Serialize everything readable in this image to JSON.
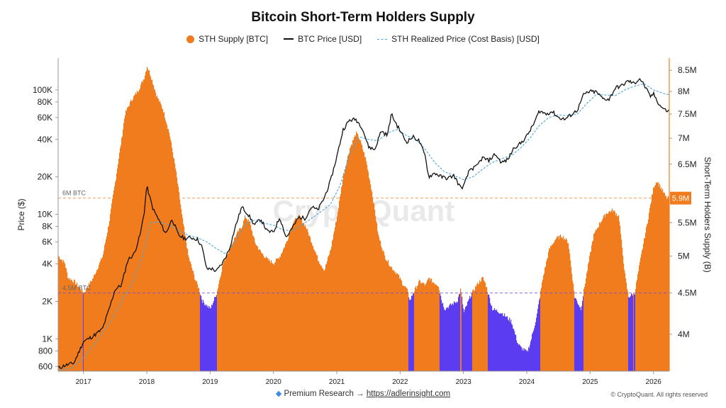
{
  "chart_data": {
    "type": "area",
    "title": "Bitcoin Short-Term Holders Supply",
    "legend": [
      {
        "name": "STH Supply [BTC]",
        "color": "#f07c1e"
      },
      {
        "name": "BTC Price [USD]",
        "color": "#111111"
      },
      {
        "name": "STH Realized Price (Cost Basis) [USD]",
        "color": "#4aa8d8"
      }
    ],
    "legend_placement": "top-center",
    "ylabel_left": "Price ($)",
    "ylabel_right": "Short-Term Holders Supply (B)",
    "y_left_scale": "log",
    "y_left_range": [
      550,
      180000
    ],
    "y_left_ticks": [
      {
        "v": 600,
        "label": "600"
      },
      {
        "v": 800,
        "label": "800"
      },
      {
        "v": 1000,
        "label": "1K"
      },
      {
        "v": 2000,
        "label": "2K"
      },
      {
        "v": 4000,
        "label": "4K"
      },
      {
        "v": 6000,
        "label": "6K"
      },
      {
        "v": 8000,
        "label": "8K"
      },
      {
        "v": 10000,
        "label": "10K"
      },
      {
        "v": 20000,
        "label": "20K"
      },
      {
        "v": 40000,
        "label": "40K"
      },
      {
        "v": 60000,
        "label": "60K"
      },
      {
        "v": 80000,
        "label": "80K"
      },
      {
        "v": 100000,
        "label": "100K"
      }
    ],
    "y_right_scale": "log",
    "y_right_range": [
      3.6,
      8.8
    ],
    "y_right_ticks": [
      {
        "v": 4.0,
        "label": "4M"
      },
      {
        "v": 4.5,
        "label": "4.5M"
      },
      {
        "v": 5.0,
        "label": "5M"
      },
      {
        "v": 5.5,
        "label": "5.5M"
      },
      {
        "v": 6.5,
        "label": "6.5M"
      },
      {
        "v": 7.0,
        "label": "7M"
      },
      {
        "v": 7.5,
        "label": "7.5M"
      },
      {
        "v": 8.0,
        "label": "8M"
      },
      {
        "v": 8.5,
        "label": "8.5M"
      }
    ],
    "x_range": [
      2016.6,
      2026.25
    ],
    "x_ticks": [
      {
        "v": 2017,
        "label": "2017"
      },
      {
        "v": 2018,
        "label": "2018"
      },
      {
        "v": 2019,
        "label": "2019"
      },
      {
        "v": 2020,
        "label": "2020"
      },
      {
        "v": 2021,
        "label": "2021"
      },
      {
        "v": 2022,
        "label": "2022"
      },
      {
        "v": 2023,
        "label": "2023"
      },
      {
        "v": 2024,
        "label": "2024"
      },
      {
        "v": 2025,
        "label": "2025"
      },
      {
        "v": 2026,
        "label": "2026"
      }
    ],
    "reference_lines": [
      {
        "value": 5.9,
        "label": "6M BTC",
        "color": "#f07c1e"
      },
      {
        "value": 4.5,
        "label": "4.5M BTC",
        "color": "#6a4cf0"
      }
    ],
    "last_value_label": "5.9M",
    "below_threshold_color": "#5b3cf0",
    "above_threshold_color": "#f07c1e",
    "sth_supply_millions": {
      "x": [
        2016.6,
        2016.7,
        2016.75,
        2016.85,
        2017.0,
        2017.15,
        2017.3,
        2017.4,
        2017.5,
        2017.6,
        2017.65,
        2017.75,
        2017.85,
        2017.95,
        2018.0,
        2018.05,
        2018.15,
        2018.25,
        2018.35,
        2018.45,
        2018.55,
        2018.65,
        2018.75,
        2018.82,
        2018.87,
        2018.93,
        2019.0,
        2019.1,
        2019.2,
        2019.3,
        2019.4,
        2019.5,
        2019.55,
        2019.62,
        2019.7,
        2019.8,
        2019.9,
        2020.0,
        2020.1,
        2020.2,
        2020.3,
        2020.4,
        2020.5,
        2020.6,
        2020.7,
        2020.8,
        2020.9,
        2021.0,
        2021.1,
        2021.2,
        2021.3,
        2021.35,
        2021.45,
        2021.55,
        2021.65,
        2021.75,
        2021.85,
        2021.95,
        2022.05,
        2022.1,
        2022.15,
        2022.2,
        2022.3,
        2022.4,
        2022.45,
        2022.5,
        2022.6,
        2022.65,
        2022.7,
        2022.8,
        2022.9,
        2022.95,
        2023.0,
        2023.1,
        2023.2,
        2023.3,
        2023.35,
        2023.45,
        2023.6,
        2023.75,
        2023.85,
        2023.9,
        2024.0,
        2024.05,
        2024.15,
        2024.25,
        2024.35,
        2024.45,
        2024.55,
        2024.65,
        2024.7,
        2024.75,
        2024.85,
        2024.95,
        2025.05,
        2025.15,
        2025.25,
        2025.35,
        2025.45,
        2025.5,
        2025.55,
        2025.6,
        2025.7,
        2025.8,
        2025.9,
        2025.95,
        2026.0,
        2026.05,
        2026.1,
        2026.2
      ],
      "y": [
        5.0,
        4.9,
        4.7,
        4.65,
        4.5,
        4.7,
        5.0,
        5.5,
        6.2,
        7.0,
        7.5,
        7.8,
        8.0,
        8.3,
        8.6,
        8.4,
        7.9,
        7.6,
        7.1,
        6.4,
        5.6,
        5.0,
        4.7,
        4.55,
        4.4,
        4.35,
        4.3,
        4.5,
        4.9,
        5.1,
        5.3,
        5.45,
        5.6,
        5.5,
        5.2,
        5.05,
        4.95,
        4.9,
        5.0,
        5.2,
        5.5,
        5.6,
        5.45,
        5.2,
        4.95,
        4.8,
        5.1,
        5.6,
        6.3,
        6.8,
        7.1,
        7.0,
        6.6,
        6.0,
        5.3,
        5.0,
        4.85,
        4.75,
        4.6,
        4.55,
        4.4,
        4.5,
        4.65,
        4.6,
        4.7,
        4.65,
        4.6,
        4.4,
        4.3,
        4.35,
        4.4,
        4.55,
        4.25,
        4.45,
        4.6,
        4.7,
        4.6,
        4.3,
        4.25,
        4.15,
        3.9,
        3.85,
        3.8,
        3.9,
        4.2,
        4.7,
        5.1,
        5.25,
        5.3,
        5.2,
        4.8,
        4.45,
        4.3,
        4.8,
        5.3,
        5.5,
        5.65,
        5.7,
        5.6,
        5.1,
        4.7,
        4.45,
        4.5,
        5.0,
        5.5,
        5.8,
        6.1,
        6.2,
        6.1,
        5.9
      ]
    },
    "btc_price_usd": {
      "x": [
        2016.6,
        2016.7,
        2016.85,
        2017.0,
        2017.15,
        2017.3,
        2017.4,
        2017.5,
        2017.6,
        2017.7,
        2017.8,
        2017.9,
        2017.96,
        2018.0,
        2018.05,
        2018.1,
        2018.2,
        2018.3,
        2018.4,
        2018.5,
        2018.6,
        2018.7,
        2018.8,
        2018.87,
        2018.95,
        2019.0,
        2019.1,
        2019.2,
        2019.3,
        2019.4,
        2019.5,
        2019.6,
        2019.7,
        2019.8,
        2019.9,
        2020.0,
        2020.1,
        2020.2,
        2020.3,
        2020.4,
        2020.5,
        2020.6,
        2020.7,
        2020.8,
        2020.9,
        2021.0,
        2021.1,
        2021.2,
        2021.3,
        2021.4,
        2021.5,
        2021.6,
        2021.7,
        2021.8,
        2021.86,
        2021.95,
        2022.0,
        2022.1,
        2022.2,
        2022.3,
        2022.4,
        2022.45,
        2022.55,
        2022.65,
        2022.75,
        2022.85,
        2022.95,
        2023.0,
        2023.1,
        2023.2,
        2023.3,
        2023.4,
        2023.5,
        2023.6,
        2023.7,
        2023.8,
        2023.9,
        2024.0,
        2024.1,
        2024.2,
        2024.3,
        2024.4,
        2024.5,
        2024.6,
        2024.7,
        2024.8,
        2024.9,
        2025.0,
        2025.1,
        2025.2,
        2025.3,
        2025.4,
        2025.5,
        2025.6,
        2025.7,
        2025.78,
        2025.85,
        2025.95,
        2026.0,
        2026.1,
        2026.2
      ],
      "y": [
        580,
        610,
        640,
        950,
        1050,
        1200,
        1700,
        2500,
        2700,
        4300,
        4800,
        7000,
        10500,
        17000,
        13500,
        11000,
        8800,
        7000,
        9200,
        6800,
        6400,
        6500,
        6300,
        5500,
        3600,
        3700,
        3500,
        4100,
        5200,
        8000,
        11500,
        10000,
        8200,
        9200,
        7300,
        7200,
        9500,
        6500,
        7800,
        9500,
        9300,
        11500,
        10800,
        13500,
        18500,
        29000,
        48000,
        57000,
        58000,
        50000,
        35000,
        33000,
        47000,
        43000,
        64000,
        52000,
        47000,
        38000,
        42000,
        39000,
        29000,
        20000,
        21500,
        20000,
        19500,
        20500,
        16500,
        16700,
        23000,
        24000,
        28500,
        27000,
        30500,
        26000,
        27500,
        34500,
        37000,
        42500,
        52000,
        68000,
        64000,
        67000,
        60000,
        58000,
        63000,
        69000,
        92000,
        97000,
        96000,
        85000,
        84000,
        104000,
        108000,
        118000,
        112000,
        124000,
        110000,
        88000,
        93000,
        75000,
        68000
      ]
    },
    "sth_realized_price_usd": {
      "x": [
        2016.6,
        2016.8,
        2017.0,
        2017.2,
        2017.4,
        2017.6,
        2017.8,
        2017.95,
        2018.05,
        2018.2,
        2018.35,
        2018.5,
        2018.65,
        2018.8,
        2018.95,
        2019.1,
        2019.25,
        2019.4,
        2019.55,
        2019.7,
        2019.85,
        2020.0,
        2020.15,
        2020.3,
        2020.45,
        2020.6,
        2020.75,
        2020.9,
        2021.05,
        2021.2,
        2021.35,
        2021.5,
        2021.65,
        2021.8,
        2021.95,
        2022.1,
        2022.25,
        2022.4,
        2022.55,
        2022.7,
        2022.85,
        2023.0,
        2023.15,
        2023.3,
        2023.45,
        2023.6,
        2023.75,
        2023.9,
        2024.05,
        2024.2,
        2024.35,
        2024.5,
        2024.65,
        2024.8,
        2024.95,
        2025.1,
        2025.25,
        2025.4,
        2025.55,
        2025.7,
        2025.85,
        2026.0,
        2026.2
      ],
      "y": [
        560,
        580,
        700,
        950,
        1300,
        2000,
        3000,
        5000,
        8500,
        8700,
        8200,
        7400,
        6800,
        6500,
        6000,
        5300,
        4800,
        6100,
        8300,
        9000,
        8500,
        8200,
        7500,
        7400,
        8200,
        9300,
        10500,
        12000,
        17000,
        30000,
        42000,
        40000,
        39000,
        45000,
        48000,
        43000,
        40000,
        33000,
        26000,
        22000,
        20500,
        19000,
        20000,
        23000,
        26000,
        28000,
        29500,
        34000,
        41000,
        52000,
        60000,
        63000,
        62000,
        64000,
        78000,
        92000,
        91000,
        90000,
        100000,
        107000,
        112000,
        100000,
        92000
      ]
    }
  },
  "footer": {
    "text": "Premium Research →",
    "link": "https://adlerinsight.com",
    "copyright": "© CryptoQuant. All rights reserved"
  },
  "watermark": "CryptoQuant"
}
